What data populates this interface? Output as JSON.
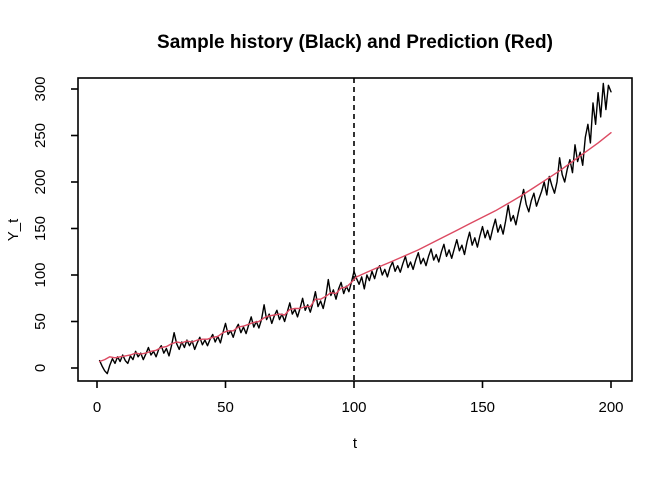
{
  "figure": {
    "title": "Sample history (Black) and Prediction (Red)",
    "xlabel": "t",
    "ylabel": "Y_t"
  },
  "colors": {
    "history_line": "#000000",
    "prediction_line": "#dc4a62",
    "axis": "#000000",
    "background": "#ffffff",
    "text": "#000000"
  },
  "chart_data": {
    "type": "line",
    "title": "Sample history (Black) and Prediction (Red)",
    "xlabel": "t",
    "ylabel": "Y_t",
    "xlim": [
      0,
      200
    ],
    "ylim": [
      0,
      300
    ],
    "x_ticks": [
      0,
      50,
      100,
      150,
      200
    ],
    "y_ticks": [
      0,
      50,
      100,
      150,
      200,
      250,
      300
    ],
    "grid": false,
    "legend": "none (colors named in title)",
    "annotations": [
      {
        "type": "vline",
        "x": 100,
        "style": "dashed",
        "color": "#000000",
        "meaning": "forecast origin"
      }
    ],
    "series": [
      {
        "name": "Sample history",
        "color": "#000000",
        "style": "solid",
        "points": [
          [
            1,
            8
          ],
          [
            2,
            2
          ],
          [
            3,
            -3
          ],
          [
            4,
            -6
          ],
          [
            5,
            3
          ],
          [
            6,
            10
          ],
          [
            7,
            5
          ],
          [
            8,
            12
          ],
          [
            9,
            7
          ],
          [
            10,
            14
          ],
          [
            11,
            8
          ],
          [
            12,
            5
          ],
          [
            13,
            13
          ],
          [
            14,
            9
          ],
          [
            15,
            18
          ],
          [
            16,
            12
          ],
          [
            17,
            16
          ],
          [
            18,
            9
          ],
          [
            19,
            15
          ],
          [
            20,
            22
          ],
          [
            21,
            14
          ],
          [
            22,
            18
          ],
          [
            23,
            12
          ],
          [
            24,
            20
          ],
          [
            25,
            24
          ],
          [
            26,
            16
          ],
          [
            27,
            21
          ],
          [
            28,
            13
          ],
          [
            29,
            24
          ],
          [
            30,
            38
          ],
          [
            31,
            26
          ],
          [
            32,
            20
          ],
          [
            33,
            28
          ],
          [
            34,
            22
          ],
          [
            35,
            30
          ],
          [
            36,
            24
          ],
          [
            37,
            29
          ],
          [
            38,
            20
          ],
          [
            39,
            27
          ],
          [
            40,
            33
          ],
          [
            41,
            25
          ],
          [
            42,
            30
          ],
          [
            43,
            24
          ],
          [
            44,
            31
          ],
          [
            45,
            36
          ],
          [
            46,
            28
          ],
          [
            47,
            34
          ],
          [
            48,
            27
          ],
          [
            49,
            38
          ],
          [
            50,
            48
          ],
          [
            51,
            36
          ],
          [
            52,
            40
          ],
          [
            53,
            33
          ],
          [
            54,
            42
          ],
          [
            55,
            47
          ],
          [
            56,
            38
          ],
          [
            57,
            44
          ],
          [
            58,
            37
          ],
          [
            59,
            46
          ],
          [
            60,
            55
          ],
          [
            61,
            44
          ],
          [
            62,
            50
          ],
          [
            63,
            43
          ],
          [
            64,
            52
          ],
          [
            65,
            68
          ],
          [
            66,
            52
          ],
          [
            67,
            58
          ],
          [
            68,
            48
          ],
          [
            69,
            56
          ],
          [
            70,
            62
          ],
          [
            71,
            52
          ],
          [
            72,
            58
          ],
          [
            73,
            50
          ],
          [
            74,
            60
          ],
          [
            75,
            70
          ],
          [
            76,
            58
          ],
          [
            77,
            63
          ],
          [
            78,
            55
          ],
          [
            79,
            64
          ],
          [
            80,
            75
          ],
          [
            81,
            62
          ],
          [
            82,
            68
          ],
          [
            83,
            60
          ],
          [
            84,
            70
          ],
          [
            85,
            82
          ],
          [
            86,
            66
          ],
          [
            87,
            72
          ],
          [
            88,
            64
          ],
          [
            89,
            76
          ],
          [
            90,
            95
          ],
          [
            91,
            78
          ],
          [
            92,
            84
          ],
          [
            93,
            74
          ],
          [
            94,
            85
          ],
          [
            95,
            92
          ],
          [
            96,
            80
          ],
          [
            97,
            88
          ],
          [
            98,
            82
          ],
          [
            99,
            92
          ],
          [
            100,
            104
          ],
          [
            101,
            96
          ],
          [
            102,
            90
          ],
          [
            103,
            98
          ],
          [
            104,
            85
          ],
          [
            105,
            100
          ],
          [
            106,
            94
          ],
          [
            107,
            104
          ],
          [
            108,
            96
          ],
          [
            109,
            106
          ],
          [
            110,
            110
          ],
          [
            111,
            100
          ],
          [
            112,
            106
          ],
          [
            113,
            98
          ],
          [
            114,
            108
          ],
          [
            115,
            114
          ],
          [
            116,
            104
          ],
          [
            117,
            110
          ],
          [
            118,
            103
          ],
          [
            119,
            112
          ],
          [
            120,
            120
          ],
          [
            121,
            108
          ],
          [
            122,
            114
          ],
          [
            123,
            106
          ],
          [
            124,
            116
          ],
          [
            125,
            124
          ],
          [
            126,
            112
          ],
          [
            127,
            118
          ],
          [
            128,
            110
          ],
          [
            129,
            120
          ],
          [
            130,
            128
          ],
          [
            131,
            116
          ],
          [
            132,
            122
          ],
          [
            133,
            114
          ],
          [
            134,
            125
          ],
          [
            135,
            133
          ],
          [
            136,
            120
          ],
          [
            137,
            127
          ],
          [
            138,
            118
          ],
          [
            139,
            128
          ],
          [
            140,
            138
          ],
          [
            141,
            126
          ],
          [
            142,
            132
          ],
          [
            143,
            122
          ],
          [
            144,
            136
          ],
          [
            145,
            146
          ],
          [
            146,
            132
          ],
          [
            147,
            140
          ],
          [
            148,
            130
          ],
          [
            149,
            142
          ],
          [
            150,
            152
          ],
          [
            151,
            140
          ],
          [
            152,
            148
          ],
          [
            153,
            138
          ],
          [
            154,
            150
          ],
          [
            155,
            160
          ],
          [
            156,
            146
          ],
          [
            157,
            154
          ],
          [
            158,
            144
          ],
          [
            159,
            158
          ],
          [
            160,
            175
          ],
          [
            161,
            158
          ],
          [
            162,
            164
          ],
          [
            163,
            154
          ],
          [
            164,
            168
          ],
          [
            165,
            180
          ],
          [
            166,
            192
          ],
          [
            167,
            176
          ],
          [
            168,
            168
          ],
          [
            169,
            180
          ],
          [
            170,
            188
          ],
          [
            171,
            174
          ],
          [
            172,
            182
          ],
          [
            173,
            190
          ],
          [
            174,
            200
          ],
          [
            175,
            186
          ],
          [
            176,
            206
          ],
          [
            177,
            196
          ],
          [
            178,
            188
          ],
          [
            179,
            200
          ],
          [
            180,
            226
          ],
          [
            181,
            208
          ],
          [
            182,
            200
          ],
          [
            183,
            214
          ],
          [
            184,
            224
          ],
          [
            185,
            210
          ],
          [
            186,
            240
          ],
          [
            187,
            222
          ],
          [
            188,
            232
          ],
          [
            189,
            218
          ],
          [
            190,
            248
          ],
          [
            191,
            262
          ],
          [
            192,
            242
          ],
          [
            193,
            285
          ],
          [
            194,
            262
          ],
          [
            195,
            296
          ],
          [
            196,
            270
          ],
          [
            197,
            306
          ],
          [
            198,
            278
          ],
          [
            199,
            304
          ],
          [
            200,
            297
          ]
        ]
      },
      {
        "name": "Prediction",
        "color": "#dc4a62",
        "style": "solid",
        "points": [
          [
            1,
            7
          ],
          [
            3,
            9
          ],
          [
            5,
            12
          ],
          [
            7,
            11
          ],
          [
            9,
            12
          ],
          [
            11,
            13
          ],
          [
            13,
            14
          ],
          [
            15,
            16
          ],
          [
            17,
            15
          ],
          [
            19,
            16
          ],
          [
            21,
            18
          ],
          [
            23,
            19
          ],
          [
            25,
            22
          ],
          [
            27,
            23
          ],
          [
            29,
            26
          ],
          [
            31,
            28
          ],
          [
            33,
            27
          ],
          [
            35,
            29
          ],
          [
            37,
            28
          ],
          [
            39,
            30
          ],
          [
            41,
            31
          ],
          [
            43,
            31
          ],
          [
            45,
            33
          ],
          [
            47,
            34
          ],
          [
            49,
            38
          ],
          [
            51,
            40
          ],
          [
            53,
            40
          ],
          [
            55,
            44
          ],
          [
            57,
            45
          ],
          [
            59,
            47
          ],
          [
            61,
            49
          ],
          [
            63,
            50
          ],
          [
            65,
            54
          ],
          [
            67,
            56
          ],
          [
            69,
            57
          ],
          [
            71,
            58
          ],
          [
            73,
            57
          ],
          [
            75,
            63
          ],
          [
            77,
            64
          ],
          [
            79,
            64
          ],
          [
            81,
            66
          ],
          [
            83,
            66
          ],
          [
            85,
            74
          ],
          [
            87,
            74
          ],
          [
            89,
            77
          ],
          [
            91,
            81
          ],
          [
            93,
            80
          ],
          [
            95,
            86
          ],
          [
            97,
            87
          ],
          [
            99,
            92
          ],
          [
            101,
            98
          ],
          [
            105,
            103
          ],
          [
            110,
            109
          ],
          [
            115,
            115
          ],
          [
            120,
            121
          ],
          [
            125,
            127
          ],
          [
            130,
            134
          ],
          [
            135,
            141
          ],
          [
            140,
            148
          ],
          [
            145,
            155
          ],
          [
            150,
            162
          ],
          [
            155,
            169
          ],
          [
            160,
            177
          ],
          [
            165,
            185
          ],
          [
            170,
            194
          ],
          [
            175,
            203
          ],
          [
            180,
            212
          ],
          [
            185,
            222
          ],
          [
            190,
            232
          ],
          [
            195,
            242
          ],
          [
            200,
            253
          ]
        ]
      }
    ]
  }
}
